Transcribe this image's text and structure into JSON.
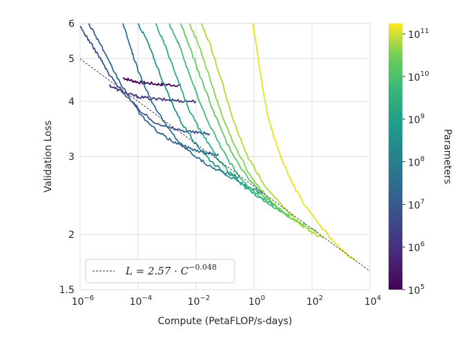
{
  "chart_data": {
    "type": "line",
    "xscale": "log",
    "yscale": "log",
    "xlim": [
      1e-06,
      10000.0
    ],
    "ylim": [
      1.5,
      6
    ],
    "xlabel": "Compute (PetaFLOP/s-days)",
    "ylabel": "Validation Loss",
    "x_ticks": [
      {
        "value": 1e-06,
        "base": "10",
        "exp": "−6"
      },
      {
        "value": 0.0001,
        "base": "10",
        "exp": "−4"
      },
      {
        "value": 0.01,
        "base": "10",
        "exp": "−2"
      },
      {
        "value": 1,
        "base": "10",
        "exp": "0"
      },
      {
        "value": 100,
        "base": "10",
        "exp": "2"
      },
      {
        "value": 10000,
        "base": "10",
        "exp": "4"
      }
    ],
    "y_ticks": [
      {
        "value": 1.5,
        "label": "1.5"
      },
      {
        "value": 2,
        "label": "2"
      },
      {
        "value": 3,
        "label": "3"
      },
      {
        "value": 4,
        "label": "4"
      },
      {
        "value": 5,
        "label": "5"
      },
      {
        "value": 6,
        "label": "6"
      }
    ],
    "fit": {
      "equation": "L = 2.57 · C^(−0.048)",
      "label_main": "L = 2.57 · C",
      "label_exp": "−0.048",
      "a": 2.57,
      "b": -0.048
    },
    "legend_position": "lower-left",
    "colorbar": {
      "label": "Parameters",
      "scale": "log",
      "range": [
        100000.0,
        175000000000.0
      ],
      "ticks": [
        {
          "value": 100000.0,
          "base": "10",
          "exp": "5"
        },
        {
          "value": 1000000.0,
          "base": "10",
          "exp": "6"
        },
        {
          "value": 10000000.0,
          "base": "10",
          "exp": "7"
        },
        {
          "value": 100000000.0,
          "base": "10",
          "exp": "8"
        },
        {
          "value": 1000000000.0,
          "base": "10",
          "exp": "9"
        },
        {
          "value": 10000000000.0,
          "base": "10",
          "exp": "10"
        },
        {
          "value": 100000000000.0,
          "base": "10",
          "exp": "11"
        }
      ],
      "colormap": "viridis"
    },
    "series": [
      {
        "params": 100000.0,
        "color": "#440154",
        "x": [
          3e-05,
          5e-05,
          0.0001,
          0.0002,
          0.0005,
          0.001,
          0.003
        ],
        "y": [
          4.52,
          4.47,
          4.42,
          4.4,
          4.37,
          4.36,
          4.35
        ]
      },
      {
        "params": 200000.0,
        "color": "#46327e",
        "x": [
          1e-05,
          2e-05,
          5e-05,
          0.0001,
          0.0003,
          0.001,
          0.003,
          0.01
        ],
        "y": [
          4.35,
          4.25,
          4.15,
          4.1,
          4.05,
          4.03,
          4.01,
          4.0
        ]
      },
      {
        "params": 500000.0,
        "color": "#3b528b",
        "x": [
          1e-06,
          2e-06,
          5e-06,
          1e-05,
          3e-05,
          0.0001,
          0.0003,
          0.001,
          0.003,
          0.01,
          0.03
        ],
        "y": [
          5.9,
          5.5,
          5.0,
          4.6,
          4.2,
          3.85,
          3.62,
          3.5,
          3.44,
          3.4,
          3.38
        ]
      },
      {
        "params": 1000000.0,
        "color": "#33638d",
        "x": [
          2e-06,
          5e-06,
          1e-05,
          3e-05,
          0.0001,
          0.0003,
          0.001,
          0.003,
          0.01,
          0.03,
          0.06
        ],
        "y": [
          6.0,
          5.4,
          4.9,
          4.3,
          3.8,
          3.5,
          3.3,
          3.18,
          3.1,
          3.05,
          3.02
        ]
      },
      {
        "params": 3000000.0,
        "color": "#2c728e",
        "x": [
          3e-05,
          6e-05,
          0.0001,
          0.0003,
          0.001,
          0.003,
          0.01,
          0.03,
          0.1,
          0.3
        ],
        "y": [
          6.0,
          5.2,
          4.7,
          4.0,
          3.5,
          3.2,
          3.0,
          2.85,
          2.75,
          2.7
        ]
      },
      {
        "params": 10000000.0,
        "color": "#21918c",
        "x": [
          0.0001,
          0.0002,
          0.0004,
          0.001,
          0.003,
          0.01,
          0.03,
          0.1,
          0.3,
          1,
          2
        ],
        "y": [
          6.0,
          5.5,
          4.9,
          4.2,
          3.6,
          3.2,
          2.95,
          2.75,
          2.62,
          2.52,
          2.48
        ]
      },
      {
        "params": 30000000.0,
        "color": "#28ae80",
        "x": [
          0.0004,
          0.0008,
          0.002,
          0.005,
          0.015,
          0.05,
          0.15,
          0.5,
          2,
          5
        ],
        "y": [
          6.0,
          5.4,
          4.6,
          3.9,
          3.4,
          3.0,
          2.75,
          2.55,
          2.4,
          2.34
        ]
      },
      {
        "params": 100000000.0,
        "color": "#3fbc73",
        "x": [
          0.0012,
          0.0025,
          0.006,
          0.015,
          0.05,
          0.15,
          0.5,
          2,
          8,
          20
        ],
        "y": [
          6.0,
          5.4,
          4.6,
          3.9,
          3.3,
          2.9,
          2.6,
          2.4,
          2.25,
          2.2
        ]
      },
      {
        "params": 300000000.0,
        "color": "#5ec962",
        "x": [
          0.003,
          0.006,
          0.015,
          0.04,
          0.12,
          0.4,
          1.5,
          6,
          25,
          60
        ],
        "y": [
          6.0,
          5.3,
          4.5,
          3.8,
          3.2,
          2.8,
          2.5,
          2.3,
          2.15,
          2.1
        ]
      },
      {
        "params": 1000000000.0,
        "color": "#84d44b",
        "x": [
          0.006,
          0.012,
          0.03,
          0.08,
          0.25,
          0.8,
          3,
          12,
          50,
          150
        ],
        "y": [
          6.0,
          5.4,
          4.5,
          3.7,
          3.1,
          2.7,
          2.42,
          2.22,
          2.08,
          2.02
        ]
      },
      {
        "params": 10000000000.0,
        "color": "#addc30",
        "x": [
          0.015,
          0.03,
          0.08,
          0.2,
          0.6,
          2,
          8,
          30,
          100,
          250
        ],
        "y": [
          6.0,
          5.4,
          4.4,
          3.6,
          3.0,
          2.62,
          2.35,
          2.15,
          2.02,
          1.96
        ]
      },
      {
        "params": 175000000000.0,
        "color": "#e8e419",
        "x": [
          0.9,
          1.1,
          1.4,
          2,
          3,
          5,
          10,
          25,
          80,
          300,
          1000,
          3000
        ],
        "y": [
          6.0,
          5.6,
          5.0,
          4.3,
          3.7,
          3.3,
          2.9,
          2.55,
          2.25,
          2.02,
          1.85,
          1.74
        ]
      }
    ]
  }
}
